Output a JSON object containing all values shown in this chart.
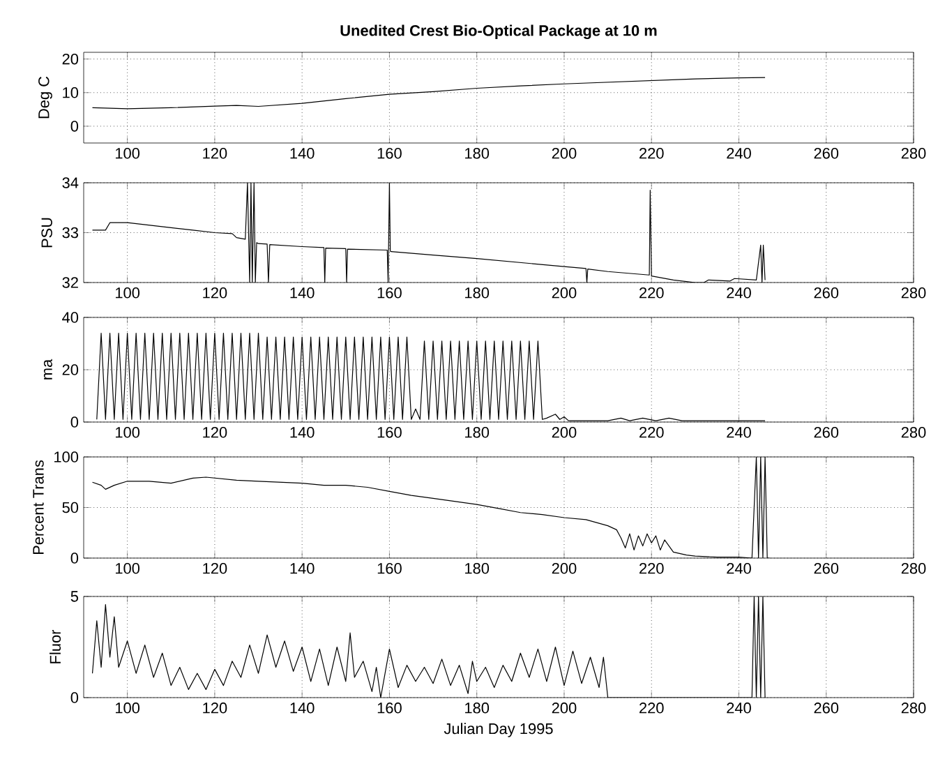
{
  "chart_data": [
    {
      "type": "line",
      "title": "Unedited Crest Bio-Optical Package at 10 m",
      "ylabel": "Deg C",
      "xlim": [
        90,
        280
      ],
      "xticks": [
        100,
        120,
        140,
        160,
        180,
        200,
        220,
        240,
        260,
        280
      ],
      "ylim": [
        -5,
        22
      ],
      "yticks": [
        0,
        10,
        20
      ],
      "grid": true,
      "series": [
        {
          "color": "#000000",
          "x": [
            92,
            100,
            110,
            120,
            125,
            130,
            140,
            150,
            160,
            170,
            180,
            190,
            200,
            210,
            220,
            230,
            240,
            246
          ],
          "values": [
            5.5,
            5.2,
            5.5,
            6,
            6.2,
            5.9,
            6.8,
            8.2,
            9.5,
            10.3,
            11.3,
            12,
            12.6,
            13.1,
            13.6,
            14.1,
            14.4,
            14.5
          ]
        }
      ]
    },
    {
      "type": "line",
      "ylabel": "PSU",
      "xlim": [
        90,
        280
      ],
      "xticks": [
        100,
        120,
        140,
        160,
        180,
        200,
        220,
        240,
        260,
        280
      ],
      "ylim": [
        32,
        34
      ],
      "yticks": [
        32,
        33,
        34
      ],
      "grid": true,
      "series": [
        {
          "color": "#000000",
          "x": [
            92,
            95,
            96,
            100,
            110,
            115,
            120,
            124,
            125,
            127,
            127.5,
            128,
            128.3,
            128.6,
            129,
            129.3,
            129.6,
            130,
            132,
            132.3,
            132.6,
            140,
            145,
            145.2,
            145.4,
            150,
            150.2,
            150.4,
            159.5,
            159.7,
            160,
            160.2,
            160.4,
            170,
            180,
            190,
            200,
            205,
            205.2,
            205.4,
            210,
            219.5,
            219.7,
            220,
            225,
            230,
            232,
            233,
            238,
            239,
            244,
            245,
            245.3,
            245.6,
            246
          ],
          "values": [
            33.05,
            33.05,
            33.2,
            33.2,
            33.1,
            33.05,
            33.0,
            32.98,
            32.9,
            32.87,
            34,
            32,
            34,
            32,
            34,
            32,
            32.8,
            32.78,
            32.77,
            32.0,
            32.76,
            32.72,
            32.7,
            32.0,
            32.69,
            32.68,
            32.0,
            32.67,
            32.65,
            32.0,
            34,
            32.63,
            32.62,
            32.55,
            32.48,
            32.4,
            32.32,
            32.28,
            32.0,
            32.27,
            32.22,
            32.15,
            33.85,
            32.13,
            32.05,
            32.0,
            32.0,
            32.05,
            32.03,
            32.08,
            32.05,
            32.75,
            32.0,
            32.75,
            32.05
          ]
        }
      ]
    },
    {
      "type": "line",
      "ylabel": "ma",
      "xlim": [
        90,
        280
      ],
      "xticks": [
        100,
        120,
        140,
        160,
        180,
        200,
        220,
        240,
        260,
        280
      ],
      "ylim": [
        0,
        40
      ],
      "yticks": [
        0,
        20,
        40
      ],
      "grid": true,
      "series": [
        {
          "color": "#000000",
          "x": [
            93,
            94,
            95,
            96,
            97,
            98,
            99,
            100,
            101,
            102,
            103,
            104,
            105,
            106,
            107,
            108,
            109,
            110,
            111,
            112,
            113,
            114,
            115,
            116,
            117,
            118,
            119,
            120,
            121,
            122,
            123,
            124,
            125,
            126,
            127,
            128,
            129,
            130,
            131,
            132,
            133,
            134,
            135,
            136,
            137,
            138,
            139,
            140,
            141,
            142,
            143,
            144,
            145,
            146,
            147,
            148,
            149,
            150,
            151,
            152,
            153,
            154,
            155,
            156,
            157,
            158,
            159,
            160,
            161,
            162,
            163,
            164,
            165,
            166,
            167,
            168,
            169,
            170,
            171,
            172,
            173,
            174,
            175,
            176,
            177,
            178,
            179,
            180,
            181,
            182,
            183,
            184,
            185,
            186,
            187,
            188,
            189,
            190,
            191,
            192,
            193,
            194,
            195,
            196,
            198,
            199,
            200,
            201,
            210,
            213,
            215,
            218,
            221,
            224,
            227,
            246
          ],
          "values": [
            1,
            34,
            1,
            34,
            1,
            34,
            1,
            34,
            1,
            34,
            1,
            34,
            1,
            34,
            1,
            34,
            1,
            34,
            1,
            34,
            1,
            34,
            1,
            34,
            1,
            34,
            1,
            34,
            1,
            34,
            1,
            34,
            1,
            34,
            1,
            34,
            1,
            34,
            1,
            32.5,
            1,
            32.5,
            1,
            32.5,
            1,
            32.5,
            1,
            32.5,
            1,
            32.5,
            1,
            32.5,
            1,
            32.5,
            1,
            32.5,
            1,
            32.5,
            1,
            32.5,
            1,
            32.5,
            1,
            32.5,
            1,
            32.5,
            1,
            32.5,
            1,
            32.5,
            1,
            32.5,
            1,
            5,
            1,
            31,
            1,
            31,
            1,
            31,
            1,
            31,
            1,
            31,
            1,
            31,
            1,
            31,
            1,
            31,
            1,
            31,
            1,
            31,
            1,
            31,
            1,
            31,
            1,
            31,
            1,
            31,
            1,
            1.5,
            3,
            1,
            2,
            0.5,
            0.5,
            1.5,
            0.5,
            1.5,
            0.5,
            1.5,
            0.5,
            0.5
          ]
        }
      ]
    },
    {
      "type": "line",
      "ylabel": "Percent Trans",
      "xlim": [
        90,
        280
      ],
      "xticks": [
        100,
        120,
        140,
        160,
        180,
        200,
        220,
        240,
        260,
        280
      ],
      "ylim": [
        0,
        100
      ],
      "yticks": [
        0,
        50,
        100
      ],
      "grid": true,
      "series": [
        {
          "color": "#000000",
          "x": [
            92,
            94,
            95,
            97,
            100,
            105,
            110,
            115,
            118,
            125,
            130,
            140,
            145,
            150,
            155,
            160,
            165,
            170,
            175,
            180,
            185,
            190,
            195,
            200,
            205,
            210,
            212,
            213,
            214,
            215,
            216,
            217,
            218,
            219,
            220,
            221,
            222,
            223,
            225,
            228,
            230,
            235,
            240,
            243,
            244,
            244.5,
            245,
            245.5,
            246,
            246.5,
            247
          ],
          "values": [
            75,
            72,
            68,
            72,
            76,
            76,
            74,
            79,
            80,
            77,
            76,
            74,
            72,
            72,
            70,
            66,
            62,
            59,
            56,
            53,
            49,
            45,
            43,
            40,
            38,
            32,
            28,
            20,
            10,
            24,
            8,
            22,
            12,
            24,
            15,
            22,
            8,
            18,
            6,
            3,
            2,
            1,
            1,
            0,
            100,
            0,
            100,
            0,
            100,
            0,
            0
          ]
        }
      ]
    },
    {
      "type": "line",
      "ylabel": "Fluor",
      "xlabel": "Julian Day 1995",
      "xlim": [
        90,
        280
      ],
      "xticks": [
        100,
        120,
        140,
        160,
        180,
        200,
        220,
        240,
        260,
        280
      ],
      "ylim": [
        0,
        5
      ],
      "yticks": [
        0,
        5
      ],
      "grid": true,
      "series": [
        {
          "color": "#000000",
          "x": [
            92,
            93,
            94,
            95,
            96,
            97,
            98,
            100,
            102,
            104,
            106,
            108,
            110,
            112,
            114,
            116,
            118,
            120,
            122,
            124,
            126,
            128,
            130,
            132,
            134,
            136,
            138,
            140,
            142,
            144,
            146,
            148,
            150,
            151,
            152,
            154,
            156,
            157,
            158,
            159,
            160,
            162,
            164,
            166,
            168,
            170,
            172,
            174,
            176,
            178,
            179,
            180,
            182,
            184,
            186,
            188,
            190,
            192,
            194,
            196,
            198,
            200,
            202,
            204,
            206,
            208,
            209,
            210,
            243,
            243.5,
            244,
            244.5,
            245,
            245.5,
            246
          ],
          "values": [
            1.2,
            3.8,
            1.5,
            4.6,
            2,
            4,
            1.5,
            2.8,
            1.2,
            2.6,
            1,
            2.2,
            0.6,
            1.5,
            0.4,
            1.2,
            0.4,
            1.4,
            0.6,
            1.8,
            1,
            2.6,
            1.2,
            3.1,
            1.5,
            2.8,
            1.3,
            2.5,
            0.8,
            2.4,
            0.6,
            2.5,
            0.8,
            3.2,
            1,
            1.8,
            0.3,
            1.5,
            0,
            1.2,
            2.4,
            0.5,
            1.6,
            0.8,
            1.5,
            0.7,
            1.9,
            0.6,
            1.6,
            0.2,
            1.8,
            0.8,
            1.5,
            0.5,
            1.6,
            0.8,
            2.2,
            1,
            2.4,
            0.8,
            2.5,
            0.6,
            2.3,
            0.7,
            2,
            0.5,
            2,
            0,
            0,
            5,
            0,
            5,
            0,
            5,
            0
          ]
        }
      ]
    }
  ]
}
